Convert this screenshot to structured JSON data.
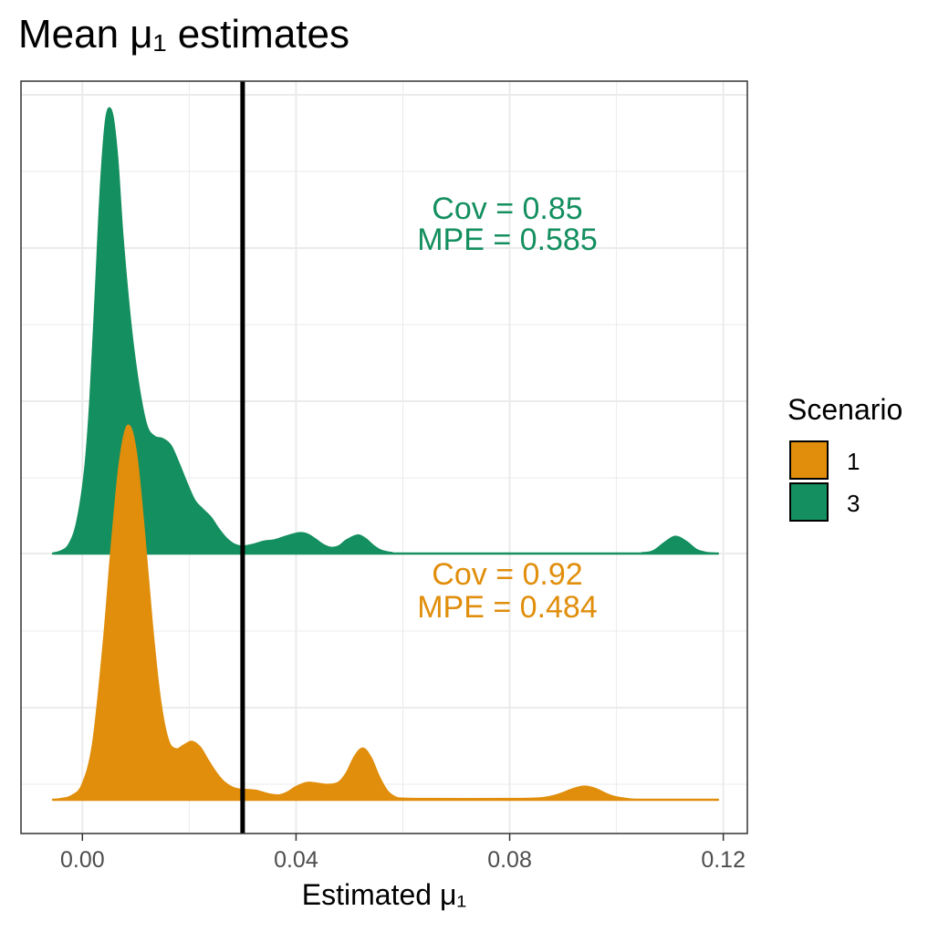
{
  "chart_data": {
    "type": "area",
    "title": "Mean μ₁ estimates",
    "xlabel": "Estimated μ₁",
    "ylabel": "",
    "xlim": [
      -0.0115,
      0.1245
    ],
    "x_ticks": [
      0.0,
      0.04,
      0.08,
      0.12
    ],
    "x_tick_labels": [
      "0.00",
      "0.04",
      "0.08",
      "0.12"
    ],
    "grid": true,
    "reference_line_x": 0.03,
    "legend": {
      "title": "Scenario",
      "position": "right",
      "entries": [
        {
          "label": "1",
          "color": "#E08E0B"
        },
        {
          "label": "3",
          "color": "#148F5F"
        }
      ]
    },
    "series": [
      {
        "name": "1",
        "color": "#E08E0B",
        "annotation": [
          "Cov = 0.92",
          "MPE = 0.484"
        ],
        "density": [
          [
            -0.0055,
            0.0
          ],
          [
            -0.004,
            0.002
          ],
          [
            -0.002,
            0.01
          ],
          [
            0.0,
            0.04
          ],
          [
            0.002,
            0.15
          ],
          [
            0.004,
            0.42
          ],
          [
            0.0055,
            0.68
          ],
          [
            0.007,
            0.9
          ],
          [
            0.0085,
            1.0
          ],
          [
            0.01,
            0.93
          ],
          [
            0.0115,
            0.72
          ],
          [
            0.013,
            0.47
          ],
          [
            0.0145,
            0.27
          ],
          [
            0.016,
            0.16
          ],
          [
            0.0175,
            0.135
          ],
          [
            0.019,
            0.145
          ],
          [
            0.0205,
            0.155
          ],
          [
            0.022,
            0.14
          ],
          [
            0.0235,
            0.105
          ],
          [
            0.025,
            0.072
          ],
          [
            0.0265,
            0.047
          ],
          [
            0.028,
            0.033
          ],
          [
            0.0295,
            0.027
          ],
          [
            0.031,
            0.026
          ],
          [
            0.0325,
            0.024
          ],
          [
            0.034,
            0.018
          ],
          [
            0.0355,
            0.013
          ],
          [
            0.037,
            0.012
          ],
          [
            0.0385,
            0.02
          ],
          [
            0.04,
            0.034
          ],
          [
            0.042,
            0.045
          ],
          [
            0.044,
            0.043
          ],
          [
            0.046,
            0.04
          ],
          [
            0.048,
            0.046
          ],
          [
            0.0495,
            0.072
          ],
          [
            0.051,
            0.115
          ],
          [
            0.0525,
            0.137
          ],
          [
            0.054,
            0.112
          ],
          [
            0.0555,
            0.062
          ],
          [
            0.057,
            0.024
          ],
          [
            0.0585,
            0.007
          ],
          [
            0.06,
            0.003
          ],
          [
            0.065,
            0.002
          ],
          [
            0.08,
            0.002
          ],
          [
            0.086,
            0.004
          ],
          [
            0.089,
            0.013
          ],
          [
            0.092,
            0.029
          ],
          [
            0.094,
            0.035
          ],
          [
            0.096,
            0.029
          ],
          [
            0.099,
            0.01
          ],
          [
            0.102,
            0.002
          ],
          [
            0.105,
            0.0
          ],
          [
            0.119,
            0.0
          ]
        ]
      },
      {
        "name": "3",
        "color": "#148F5F",
        "annotation": [
          "Cov = 0.85",
          "MPE = 0.585"
        ],
        "density": [
          [
            -0.0055,
            0.0
          ],
          [
            -0.004,
            0.005
          ],
          [
            -0.0025,
            0.02
          ],
          [
            -0.001,
            0.07
          ],
          [
            0.0005,
            0.19
          ],
          [
            0.0015,
            0.35
          ],
          [
            0.0025,
            0.59
          ],
          [
            0.0035,
            0.84
          ],
          [
            0.0045,
            0.99
          ],
          [
            0.0055,
            1.0
          ],
          [
            0.0065,
            0.9
          ],
          [
            0.0075,
            0.72
          ],
          [
            0.009,
            0.52
          ],
          [
            0.0105,
            0.38
          ],
          [
            0.012,
            0.29
          ],
          [
            0.0135,
            0.265
          ],
          [
            0.015,
            0.26
          ],
          [
            0.0165,
            0.245
          ],
          [
            0.018,
            0.205
          ],
          [
            0.0195,
            0.16
          ],
          [
            0.021,
            0.12
          ],
          [
            0.0225,
            0.1
          ],
          [
            0.024,
            0.082
          ],
          [
            0.0255,
            0.055
          ],
          [
            0.027,
            0.033
          ],
          [
            0.0285,
            0.02
          ],
          [
            0.03,
            0.016
          ],
          [
            0.032,
            0.02
          ],
          [
            0.034,
            0.027
          ],
          [
            0.036,
            0.03
          ],
          [
            0.038,
            0.038
          ],
          [
            0.0405,
            0.046
          ],
          [
            0.042,
            0.044
          ],
          [
            0.0435,
            0.033
          ],
          [
            0.045,
            0.02
          ],
          [
            0.0465,
            0.013
          ],
          [
            0.048,
            0.016
          ],
          [
            0.0495,
            0.03
          ],
          [
            0.0515,
            0.041
          ],
          [
            0.053,
            0.033
          ],
          [
            0.0545,
            0.017
          ],
          [
            0.056,
            0.006
          ],
          [
            0.058,
            0.001
          ],
          [
            0.06,
            0.0
          ],
          [
            0.1,
            0.0
          ],
          [
            0.105,
            0.001
          ],
          [
            0.107,
            0.006
          ],
          [
            0.109,
            0.024
          ],
          [
            0.111,
            0.038
          ],
          [
            0.113,
            0.027
          ],
          [
            0.115,
            0.008
          ],
          [
            0.117,
            0.001
          ],
          [
            0.119,
            0.0
          ]
        ]
      }
    ]
  }
}
